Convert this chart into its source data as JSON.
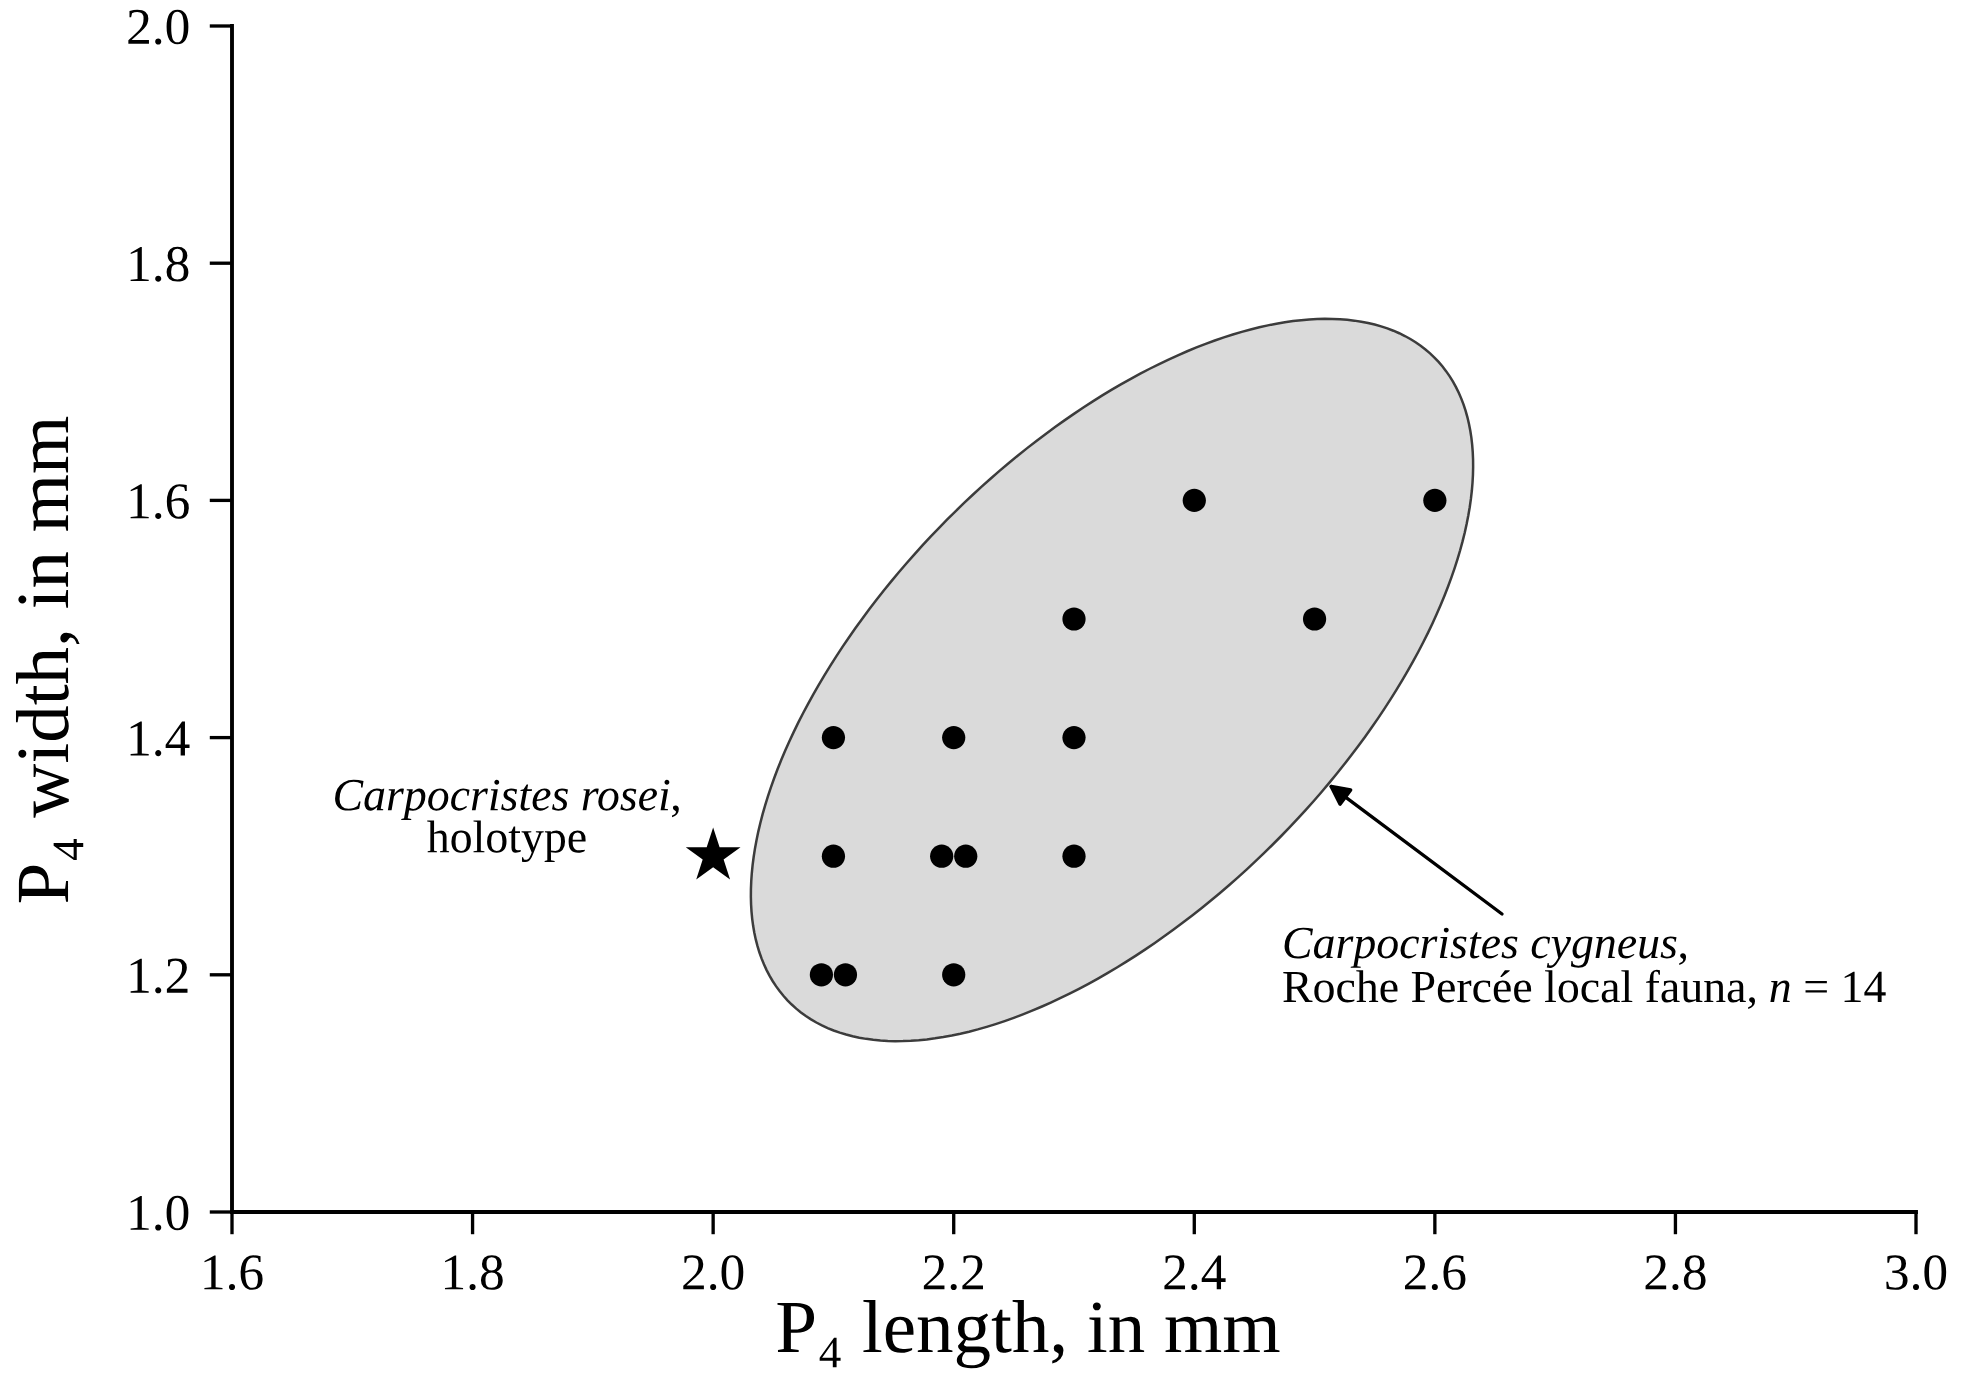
{
  "chart_data": {
    "type": "scatter",
    "xlabel": "P₄ length, in mm",
    "ylabel": "P₄ width, in mm",
    "xlim": [
      1.6,
      3.0
    ],
    "ylim": [
      1.0,
      2.0
    ],
    "xticks": [
      1.6,
      1.8,
      {
        "value": 2,
        "label": "2.0"
      },
      2.2,
      2.4,
      2.6,
      2.8,
      {
        "value": 3,
        "label": "3.0"
      }
    ],
    "yticks": [
      {
        "value": 1,
        "label": "1.0"
      },
      1.2,
      1.4,
      1.6,
      1.8,
      {
        "value": 2,
        "label": "2.0"
      }
    ],
    "annotations": [
      "Carpocristes cygneus,\nRoche Percée local fauna, n = 14"
    ],
    "series": [
      {
        "color": "#000000",
        "marker": "circle",
        "x": [
          2.09,
          2.11,
          2.2,
          2.1,
          2.19,
          2.21,
          2.3,
          2.1,
          2.2,
          2.3,
          2.3,
          2.5,
          2.4,
          2.6
        ],
        "values": [
          1.2,
          1.2,
          1.2,
          1.3,
          1.3,
          1.3,
          1.3,
          1.4,
          1.4,
          1.4,
          1.5,
          1.5,
          1.6,
          1.6
        ]
      },
      {
        "name": "Carpocristes rosei,\nholotype",
        "color": "#000000",
        "marker": "star",
        "x": [
          2.0
        ],
        "values": [
          1.3
        ]
      }
    ]
  }
}
